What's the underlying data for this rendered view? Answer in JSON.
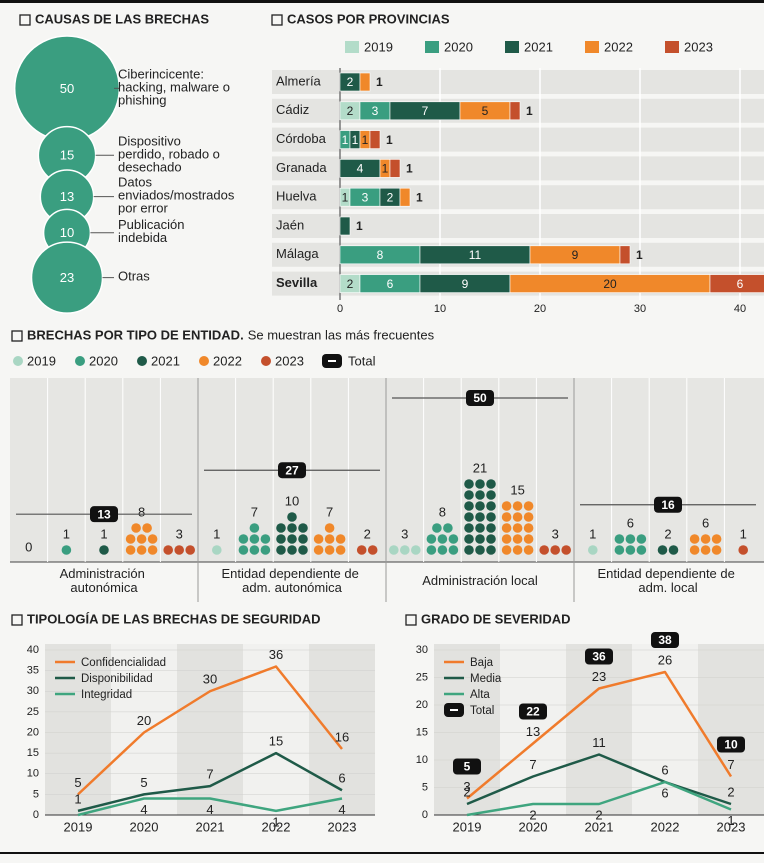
{
  "chart_data": [
    {
      "type": "bubble",
      "title": "CAUSAS DE LAS BRECHAS",
      "categories": [
        "Ciberincicente: hacking, malware o phishing",
        "Dispositivo perdido, robado o desechado",
        "Datos enviados/mostrados por error",
        "Publicación indebida",
        "Otras"
      ],
      "values": [
        50,
        15,
        13,
        10,
        23
      ],
      "color": "#3a9e80"
    },
    {
      "type": "bar",
      "orientation": "horizontal",
      "stacked": true,
      "title": "CASOS POR PROVINCIAS",
      "categories": [
        "Almería",
        "Cádiz",
        "Córdoba",
        "Granada",
        "Huelva",
        "Jaén",
        "Málaga",
        "Sevilla"
      ],
      "series": [
        {
          "name": "2019",
          "color": "#b3dcc9",
          "values": [
            0,
            2,
            0,
            0,
            1,
            0,
            0,
            2
          ]
        },
        {
          "name": "2020",
          "color": "#3a9e80",
          "values": [
            0,
            3,
            1,
            0,
            3,
            0,
            8,
            6
          ]
        },
        {
          "name": "2021",
          "color": "#1f5a48",
          "values": [
            2,
            7,
            1,
            4,
            2,
            1,
            11,
            9
          ]
        },
        {
          "name": "2022",
          "color": "#f0882a",
          "values": [
            1,
            5,
            1,
            1,
            1,
            0,
            9,
            20
          ]
        },
        {
          "name": "2023",
          "color": "#c4502c",
          "values": [
            0,
            1,
            1,
            1,
            0,
            0,
            1,
            6
          ]
        }
      ],
      "xlim": [
        0,
        42.4
      ],
      "xticks": [
        0,
        10,
        20,
        30,
        40
      ]
    },
    {
      "type": "dot",
      "title": "BRECHAS POR TIPO DE ENTIDAD.",
      "subtitle": "Se muestran las más frecuentes",
      "categories": [
        "Administración autonómica",
        "Entidad dependiente de adm. autonómica",
        "Administración local",
        "Entidad dependiente de adm. local"
      ],
      "series": [
        {
          "name": "2019",
          "color": "#a9d6c3",
          "values": [
            0,
            1,
            3,
            1
          ]
        },
        {
          "name": "2020",
          "color": "#3a9e80",
          "values": [
            1,
            7,
            8,
            6
          ]
        },
        {
          "name": "2021",
          "color": "#1f5a48",
          "values": [
            1,
            10,
            21,
            2
          ]
        },
        {
          "name": "2022",
          "color": "#f0882a",
          "values": [
            8,
            7,
            15,
            6
          ]
        },
        {
          "name": "2023",
          "color": "#c4502c",
          "values": [
            3,
            2,
            3,
            1
          ]
        }
      ],
      "totals": [
        13,
        27,
        50,
        16
      ],
      "totals_name": "Total",
      "totals_color": "#111111"
    },
    {
      "type": "line",
      "title": "TIPOLOGÍA DE LAS BRECHAS DE SEGURIDAD",
      "categories": [
        "2019",
        "2020",
        "2021",
        "2022",
        "2023"
      ],
      "series": [
        {
          "name": "Confidencialidad",
          "color": "#f07b2c",
          "values": [
            5,
            20,
            30,
            36,
            16
          ]
        },
        {
          "name": "Disponibilidad",
          "color": "#1f5a48",
          "values": [
            1,
            5,
            7,
            15,
            6
          ]
        },
        {
          "name": "Integridad",
          "color": "#3fa57f",
          "values": [
            0,
            4,
            4,
            1,
            4
          ],
          "value_labels": [
            null,
            "4",
            "4",
            "1",
            "4"
          ]
        }
      ],
      "ylim": [
        0,
        40
      ],
      "yticks": [
        0,
        5,
        10,
        15,
        20,
        25,
        30,
        35,
        40
      ]
    },
    {
      "type": "line",
      "title": "GRADO DE SEVERIDAD",
      "categories": [
        "2019",
        "2020",
        "2021",
        "2022",
        "2023"
      ],
      "series": [
        {
          "name": "Baja",
          "color": "#f07b2c",
          "values": [
            3,
            13,
            23,
            26,
            7
          ]
        },
        {
          "name": "Media",
          "color": "#1f5a48",
          "values": [
            2,
            7,
            11,
            6,
            2
          ]
        },
        {
          "name": "Alta",
          "color": "#3fa57f",
          "values": [
            0,
            2,
            2,
            6,
            1
          ],
          "value_labels": [
            null,
            "2",
            "2",
            "6",
            "1"
          ]
        }
      ],
      "totals": [
        5,
        22,
        36,
        38,
        10
      ],
      "totals_name": "Total",
      "totals_color": "#111111",
      "ylim": [
        0,
        30
      ],
      "yticks": [
        0,
        5,
        10,
        15,
        20,
        25,
        30
      ]
    }
  ]
}
